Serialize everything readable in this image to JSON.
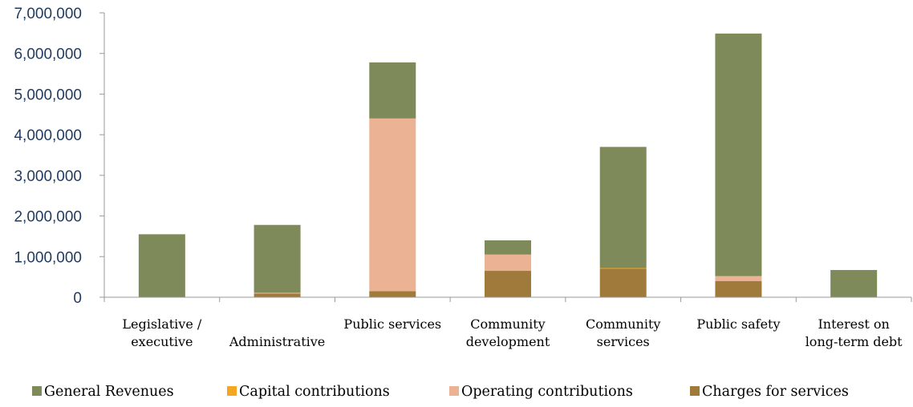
{
  "chart_data": {
    "type": "bar",
    "stacked": true,
    "title": "",
    "xlabel": "",
    "ylabel": "",
    "ylim": [
      0,
      7000000
    ],
    "yticks": [
      "0",
      "1,000,000",
      "2,000,000",
      "3,000,000",
      "4,000,000",
      "5,000,000",
      "6,000,000",
      "7,000,000"
    ],
    "categories": [
      [
        "Legislative /",
        "executive"
      ],
      [
        "Administrative"
      ],
      [
        "Public services"
      ],
      [
        "Community",
        "development"
      ],
      [
        "Community",
        "services"
      ],
      [
        "Public safety"
      ],
      [
        "Interest on",
        "long-term debt"
      ]
    ],
    "series": [
      {
        "name": "Charges for services",
        "color": "#a07a3a",
        "values": [
          0,
          90000,
          150000,
          650000,
          700000,
          400000,
          0
        ]
      },
      {
        "name": "Capital contributions",
        "color": "#f5a623",
        "values": [
          0,
          0,
          0,
          0,
          20000,
          0,
          0
        ]
      },
      {
        "name": "Operating contributions",
        "color": "#ebb293",
        "values": [
          0,
          20000,
          4250000,
          400000,
          0,
          120000,
          0
        ]
      },
      {
        "name": "General Revenues",
        "color": "#7f8a5a",
        "values": [
          1550000,
          1670000,
          1380000,
          350000,
          2980000,
          5970000,
          670000
        ]
      }
    ],
    "legend": {
      "position": "bottom",
      "order": [
        "General Revenues",
        "Capital contributions",
        "Operating contributions",
        "Charges for services"
      ]
    },
    "grid": false
  }
}
